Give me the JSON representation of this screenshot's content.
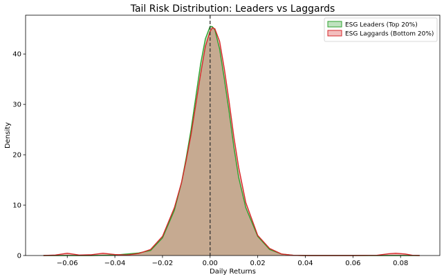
{
  "chart_data": {
    "type": "area",
    "title": "Tail Risk Distribution: Leaders vs Laggards",
    "xlabel": "Daily Returns",
    "ylabel": "Density",
    "xlim": [
      -0.0775,
      0.0965
    ],
    "ylim": [
      0,
      47.7
    ],
    "xticks": [
      -0.06,
      -0.04,
      -0.02,
      0.0,
      0.02,
      0.04,
      0.06,
      0.08
    ],
    "xtick_labels": [
      "−0.06",
      "−0.04",
      "−0.02",
      "0.00",
      "0.02",
      "0.04",
      "0.06",
      "0.08"
    ],
    "yticks": [
      0,
      10,
      20,
      30,
      40
    ],
    "ytick_labels": [
      "0",
      "10",
      "20",
      "30",
      "40"
    ],
    "vline": {
      "x": 0.0,
      "style": "dashed",
      "color": "#333333"
    },
    "legend_position": "top-right",
    "series": [
      {
        "name": "ESG Leaders (Top 20%)",
        "line_color": "#2ca02c",
        "fill_color": "#2ca02c",
        "x": [
          -0.07,
          -0.06,
          -0.05,
          -0.04,
          -0.035,
          -0.03,
          -0.025,
          -0.02,
          -0.015,
          -0.012,
          -0.01,
          -0.008,
          -0.006,
          -0.004,
          -0.002,
          0.0,
          0.001,
          0.002,
          0.004,
          0.006,
          0.008,
          0.01,
          0.012,
          0.015,
          0.02,
          0.025,
          0.03,
          0.035,
          0.04,
          0.05,
          0.06,
          0.07,
          0.08,
          0.088
        ],
        "y": [
          0,
          0,
          0,
          0.1,
          0.3,
          0.5,
          1.0,
          3.5,
          9.0,
          14.5,
          19.5,
          25.0,
          31.5,
          38.0,
          43.0,
          45.5,
          45.4,
          44.8,
          41.0,
          35.0,
          28.5,
          21.5,
          15.5,
          9.5,
          3.8,
          1.2,
          0.3,
          0.05,
          0,
          0,
          0,
          0,
          0,
          0
        ]
      },
      {
        "name": "ESG Laggards (Bottom 20%)",
        "line_color": "#d62728",
        "fill_color": "#d62728",
        "x": [
          -0.07,
          -0.065,
          -0.06,
          -0.055,
          -0.05,
          -0.045,
          -0.04,
          -0.035,
          -0.03,
          -0.025,
          -0.02,
          -0.015,
          -0.012,
          -0.01,
          -0.008,
          -0.006,
          -0.004,
          -0.002,
          0.0,
          0.001,
          0.002,
          0.004,
          0.006,
          0.008,
          0.01,
          0.012,
          0.015,
          0.02,
          0.025,
          0.03,
          0.035,
          0.04,
          0.05,
          0.06,
          0.07,
          0.075,
          0.078,
          0.082,
          0.085,
          0.088
        ],
        "y": [
          0,
          0.1,
          0.45,
          0.1,
          0.15,
          0.45,
          0.2,
          0.1,
          0.4,
          1.2,
          3.8,
          9.5,
          14.5,
          19.0,
          24.0,
          30.0,
          36.0,
          41.5,
          44.5,
          45.2,
          45.0,
          42.5,
          37.0,
          30.5,
          23.5,
          17.5,
          10.5,
          4.0,
          1.4,
          0.3,
          0.05,
          0,
          0,
          0,
          0.05,
          0.35,
          0.45,
          0.3,
          0.05,
          0
        ]
      }
    ]
  }
}
